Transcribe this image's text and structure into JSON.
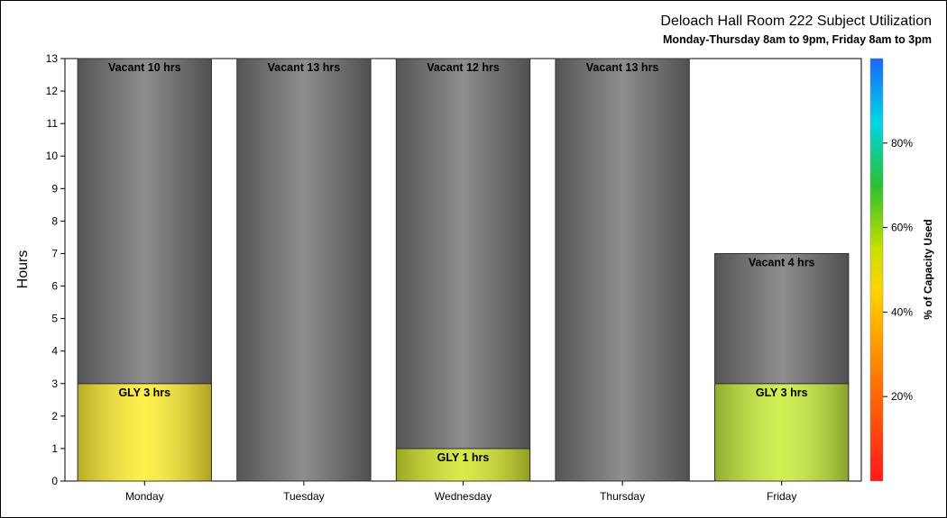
{
  "chart_data": {
    "type": "bar",
    "stacked": true,
    "title": "Deloach Hall Room 222 Subject Utilization",
    "subtitle": "Monday-Thursday 8am to 9pm, Friday 8am to 3pm",
    "ylabel": "Hours",
    "xlabel": "",
    "ylim": [
      0,
      13
    ],
    "yticks": [
      0,
      1,
      2,
      3,
      4,
      5,
      6,
      7,
      8,
      9,
      10,
      11,
      12,
      13
    ],
    "categories": [
      "Monday",
      "Tuesday",
      "Wednesday",
      "Thursday",
      "Friday"
    ],
    "series": [
      {
        "values": [
          3,
          0,
          1,
          0,
          3
        ],
        "labels": [
          "GLY 3 hrs",
          "",
          "GLY 1 hrs",
          "",
          "GLY 3 hrs"
        ],
        "colors": [
          "#ffee33",
          "",
          "#d4e62e",
          "",
          "#c8ee3e"
        ]
      },
      {
        "values": [
          10,
          13,
          12,
          13,
          4
        ],
        "labels": [
          "Vacant 10 hrs",
          "Vacant 13 hrs",
          "Vacant 12 hrs",
          "Vacant 13 hrs",
          "Vacant 4 hrs"
        ],
        "color": "#7a7a7a"
      }
    ],
    "colorbar": {
      "title": "% of Capacity Used",
      "ticks": [
        "20%",
        "40%",
        "60%",
        "80%"
      ],
      "tick_values": [
        20,
        40,
        60,
        80
      ],
      "range": [
        0,
        100
      ]
    },
    "grid": false,
    "legend": "none"
  }
}
